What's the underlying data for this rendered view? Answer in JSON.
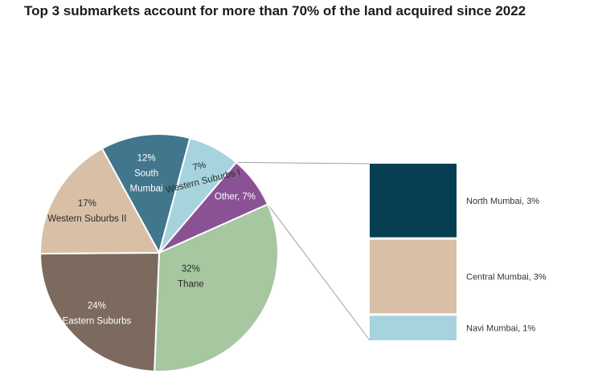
{
  "title": "Top 3 submarkets account for more than 70% of the land acquired since 2022",
  "chart_data": {
    "type": "pie",
    "title": "Top 3 submarkets account for more than 70% of the land acquired since 2022",
    "slices": [
      {
        "label": "Western Suburbs I",
        "pct_label": "7%",
        "value": 7,
        "color": "#a6d3de"
      },
      {
        "label": "Other",
        "pct_label": "7%",
        "value": 7,
        "color": "#8a5294"
      },
      {
        "label": "Thane",
        "pct_label": "32%",
        "value": 32,
        "color": "#a6c7a0"
      },
      {
        "label": "Eastern Suburbs",
        "pct_label": "24%",
        "value": 24,
        "color": "#7c6a5e"
      },
      {
        "label": "Western Suburbs II",
        "pct_label": "17%",
        "value": 17,
        "color": "#d8bfa6"
      },
      {
        "label": "South Mumbai",
        "pct_label": "12%",
        "value": 12,
        "color": "#41768c"
      }
    ],
    "other_breakdown": [
      {
        "label": "North Mumbai, 3%",
        "value": 3,
        "color": "#073f52"
      },
      {
        "label": "Central Mumbai, 3%",
        "value": 3,
        "color": "#d8bfa6"
      },
      {
        "label": "Navi Mumbai, 1%",
        "value": 1,
        "color": "#a6d3de"
      }
    ]
  }
}
